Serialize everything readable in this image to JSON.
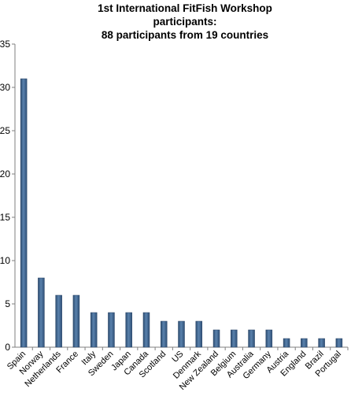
{
  "chart_data": {
    "type": "bar",
    "title_lines": [
      "1st International FitFish Workshop",
      "participants:",
      "88 participants from 19 countries"
    ],
    "categories": [
      "Spain",
      "Norway",
      "Netherlands",
      "France",
      "Italy",
      "Sweden",
      "Japan",
      "Canada",
      "Scotland",
      "US",
      "Denmark",
      "New Zealand",
      "Belgium",
      "Australia",
      "Germany",
      "Austria",
      "England",
      "Brazil",
      "Portugal"
    ],
    "values": [
      31,
      8,
      6,
      6,
      4,
      4,
      4,
      4,
      3,
      3,
      3,
      2,
      2,
      2,
      2,
      1,
      1,
      1,
      1
    ],
    "yticks": [
      0,
      5,
      10,
      15,
      20,
      25,
      30,
      35
    ],
    "ylim": [
      0,
      35
    ],
    "xlabel": "",
    "ylabel": "",
    "grid": false,
    "bar_color": "#3f6590"
  }
}
